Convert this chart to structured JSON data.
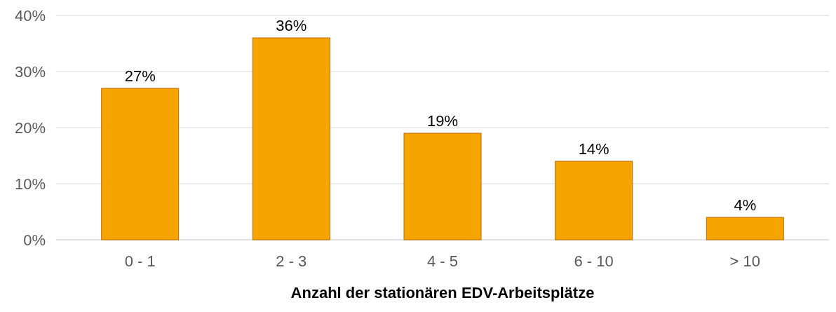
{
  "chart_data": {
    "type": "bar",
    "xlabel": "Anzahl der stationären EDV-Arbeitsplätze",
    "categories": [
      "0 - 1",
      "2 - 3",
      "4 - 5",
      "6 - 10",
      "> 10"
    ],
    "values": [
      27,
      36,
      19,
      14,
      4
    ],
    "value_labels": [
      "27%",
      "36%",
      "19%",
      "14%",
      "4%"
    ],
    "color": "#f5a400",
    "ylim": [
      0,
      40
    ],
    "yticks": [
      {
        "value": 0,
        "label": "0%"
      },
      {
        "value": 10,
        "label": "10%"
      },
      {
        "value": 20,
        "label": "20%"
      },
      {
        "value": 30,
        "label": "30%"
      },
      {
        "value": 40,
        "label": "40%"
      }
    ],
    "grid": "y"
  }
}
